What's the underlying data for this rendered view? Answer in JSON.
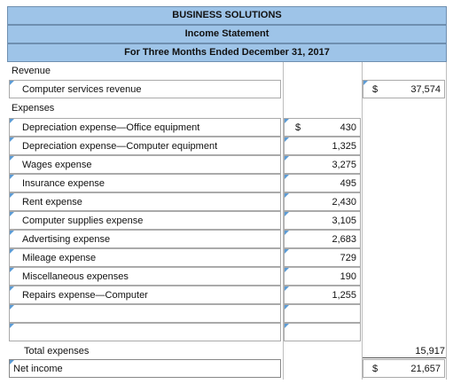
{
  "header": {
    "company": "BUSINESS SOLUTIONS",
    "statement": "Income Statement",
    "period": "For Three Months Ended December 31, 2017"
  },
  "revenue": {
    "section_label": "Revenue",
    "line_label": "Computer services revenue",
    "currency": "$",
    "amount": "37,574"
  },
  "expenses": {
    "section_label": "Expenses",
    "currency": "$",
    "items": [
      {
        "label": "Depreciation expense—Office equipment",
        "amount": "430"
      },
      {
        "label": "Depreciation expense—Computer equipment",
        "amount": "1,325"
      },
      {
        "label": "Wages expense",
        "amount": "3,275"
      },
      {
        "label": "Insurance expense",
        "amount": "495"
      },
      {
        "label": "Rent expense",
        "amount": "2,430"
      },
      {
        "label": "Computer supplies expense",
        "amount": "3,105"
      },
      {
        "label": "Advertising expense",
        "amount": "2,683"
      },
      {
        "label": "Mileage expense",
        "amount": "729"
      },
      {
        "label": "Miscellaneous expenses",
        "amount": "190"
      },
      {
        "label": "Repairs expense—Computer",
        "amount": "1,255"
      },
      {
        "label": "",
        "amount": ""
      },
      {
        "label": "",
        "amount": ""
      }
    ],
    "total_label": "Total expenses",
    "total_amount": "15,917"
  },
  "net_income": {
    "label": "Net income",
    "currency": "$",
    "amount": "21,657"
  }
}
